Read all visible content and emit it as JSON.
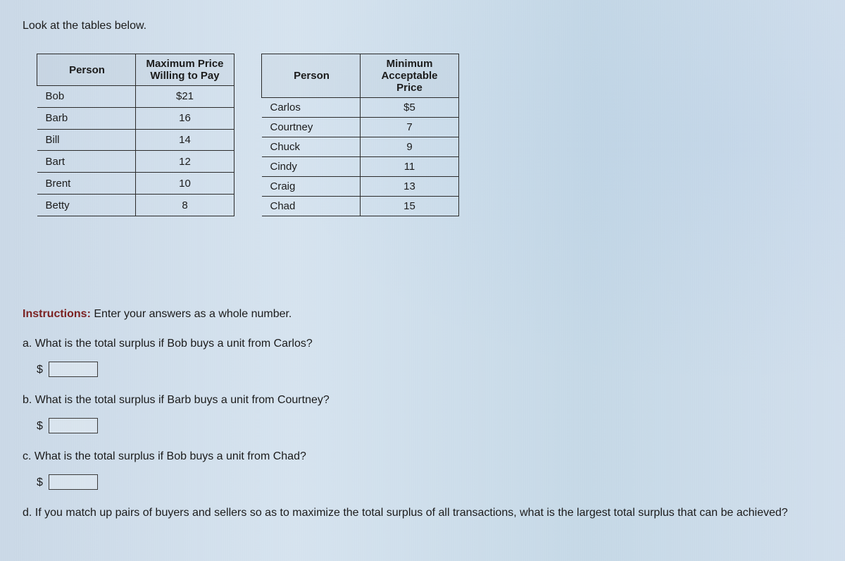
{
  "prompt": "Look at the tables below.",
  "buyers_table": {
    "headers": {
      "person": "Person",
      "value": "Maximum Price Willing to Pay"
    },
    "rows": [
      {
        "person": "Bob",
        "value": "$21"
      },
      {
        "person": "Barb",
        "value": "16"
      },
      {
        "person": "Bill",
        "value": "14"
      },
      {
        "person": "Bart",
        "value": "12"
      },
      {
        "person": "Brent",
        "value": "10"
      },
      {
        "person": "Betty",
        "value": "8"
      }
    ]
  },
  "sellers_table": {
    "headers": {
      "person": "Person",
      "value": "Minimum Acceptable Price"
    },
    "rows": [
      {
        "person": "Carlos",
        "value": "$5"
      },
      {
        "person": "Courtney",
        "value": "7"
      },
      {
        "person": "Chuck",
        "value": "9"
      },
      {
        "person": "Cindy",
        "value": "11"
      },
      {
        "person": "Craig",
        "value": "13"
      },
      {
        "person": "Chad",
        "value": "15"
      }
    ]
  },
  "instructions_label": "Instructions:",
  "instructions_text": "Enter your answers as a whole number.",
  "questions": {
    "a": "a. What is the total surplus if Bob buys a unit from Carlos?",
    "b": "b. What is the total surplus if Barb buys a unit from Courtney?",
    "c": "c. What is the total surplus if Bob buys a unit from Chad?",
    "d": "d. If you match up pairs of buyers and sellers so as to maximize the total surplus of all transactions, what is the largest total surplus that can be achieved?"
  },
  "currency_symbol": "$",
  "colors": {
    "instruction_label": "#7a1f1f",
    "text": "#1a1a1a",
    "border": "#2a2a2a"
  }
}
